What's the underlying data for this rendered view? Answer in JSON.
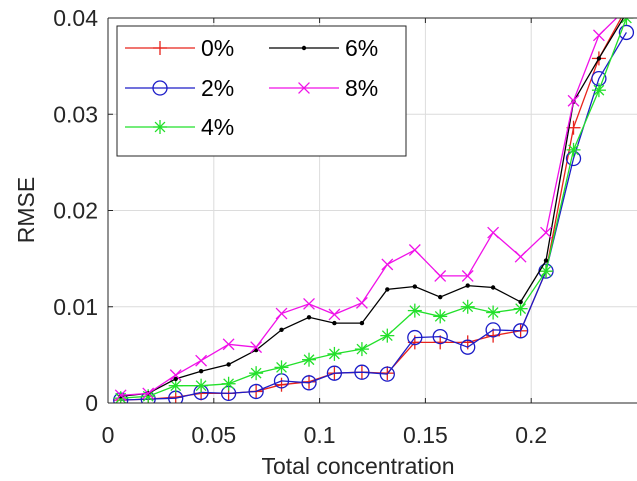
{
  "chart_data": {
    "type": "line",
    "xlabel": "Total concentration",
    "ylabel": "RMSE",
    "xlim": [
      0,
      0.25
    ],
    "ylim": [
      0,
      0.04
    ],
    "grid": true,
    "legend_position": "top-left",
    "xticks": [
      0,
      0.05,
      0.1,
      0.15,
      0.2
    ],
    "xtick_labels": [
      "0",
      "0.05",
      "0.1",
      "0.15",
      "0.2"
    ],
    "yticks": [
      0,
      0.01,
      0.02,
      0.03,
      0.04
    ],
    "ytick_labels": [
      "0",
      "0.01",
      "0.02",
      "0.03",
      "0.04"
    ],
    "x": [
      0.006,
      0.019,
      0.032,
      0.044,
      0.057,
      0.07,
      0.082,
      0.095,
      0.107,
      0.12,
      0.132,
      0.145,
      0.157,
      0.17,
      0.182,
      0.195,
      0.207,
      0.22,
      0.232,
      0.245
    ],
    "series": [
      {
        "name": "0%",
        "color": "#e8231b",
        "marker": "plus",
        "values": [
          0.0003,
          0.0004,
          0.0006,
          0.001,
          0.001,
          0.0012,
          0.0019,
          0.0022,
          0.0031,
          0.0032,
          0.0031,
          0.0063,
          0.0063,
          0.0063,
          0.007,
          0.0075,
          0.0137,
          0.0286,
          0.0358,
          0.041
        ]
      },
      {
        "name": "2%",
        "color": "#1c1cc8",
        "marker": "circle",
        "values": [
          0.0003,
          0.0004,
          0.0005,
          0.0011,
          0.001,
          0.0012,
          0.0023,
          0.0021,
          0.0031,
          0.0032,
          0.003,
          0.0068,
          0.0069,
          0.0058,
          0.0076,
          0.0075,
          0.0137,
          0.0254,
          0.0337,
          0.0385
        ]
      },
      {
        "name": "4%",
        "color": "#22e02a",
        "marker": "asterisk",
        "values": [
          0.0005,
          0.0007,
          0.0018,
          0.0018,
          0.002,
          0.0031,
          0.0037,
          0.0045,
          0.0051,
          0.0056,
          0.007,
          0.0096,
          0.009,
          0.01,
          0.0094,
          0.0098,
          0.0137,
          0.0263,
          0.0325,
          0.04
        ]
      },
      {
        "name": "6%",
        "color": "#000000",
        "marker": "dot",
        "values": [
          0.0007,
          0.001,
          0.0025,
          0.0033,
          0.004,
          0.0055,
          0.0076,
          0.0089,
          0.0083,
          0.0083,
          0.0118,
          0.0121,
          0.011,
          0.0122,
          0.012,
          0.0105,
          0.0148,
          0.0313,
          0.0358,
          0.0405
        ]
      },
      {
        "name": "8%",
        "color": "#f011e8",
        "marker": "x",
        "values": [
          0.0008,
          0.001,
          0.0029,
          0.0044,
          0.0061,
          0.0058,
          0.0093,
          0.0103,
          0.0092,
          0.0104,
          0.0144,
          0.0159,
          0.0132,
          0.0132,
          0.0177,
          0.0152,
          0.0177,
          0.0314,
          0.0382,
          0.041
        ]
      }
    ]
  }
}
